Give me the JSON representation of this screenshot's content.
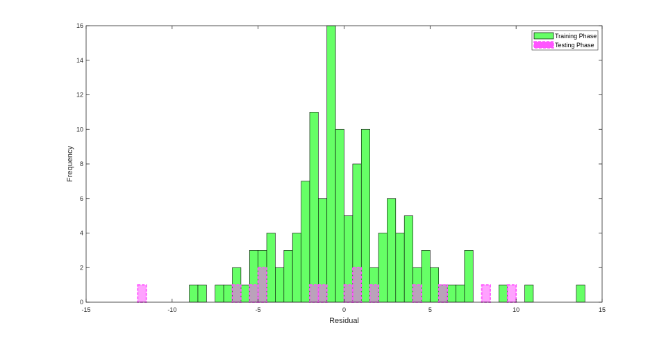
{
  "chart_data": {
    "type": "bar",
    "xlabel": "Residual",
    "ylabel": "Frequency",
    "xlim": [
      -15,
      15
    ],
    "ylim": [
      0,
      16
    ],
    "x_ticks": [
      -15,
      -10,
      -5,
      0,
      5,
      10,
      15
    ],
    "y_ticks": [
      0,
      2,
      4,
      6,
      8,
      10,
      12,
      14,
      16
    ],
    "bin_width": 0.5,
    "legend_position": "top-right",
    "series": [
      {
        "name": "Training Phase",
        "color": "#66ff66",
        "edge_color": "#000000",
        "line_style": "solid",
        "bins": [
          {
            "x": -9,
            "count": 1
          },
          {
            "x": -8.5,
            "count": 1
          },
          {
            "x": -7.5,
            "count": 1
          },
          {
            "x": -7,
            "count": 1
          },
          {
            "x": -6.5,
            "count": 2
          },
          {
            "x": -6,
            "count": 1
          },
          {
            "x": -5.5,
            "count": 3
          },
          {
            "x": -5,
            "count": 3
          },
          {
            "x": -4.5,
            "count": 4
          },
          {
            "x": -4,
            "count": 2
          },
          {
            "x": -3.5,
            "count": 3
          },
          {
            "x": -3,
            "count": 4
          },
          {
            "x": -2.5,
            "count": 7
          },
          {
            "x": -2,
            "count": 11
          },
          {
            "x": -1.5,
            "count": 6
          },
          {
            "x": -1,
            "count": 16
          },
          {
            "x": -0.5,
            "count": 10
          },
          {
            "x": 0,
            "count": 5
          },
          {
            "x": 0.5,
            "count": 8
          },
          {
            "x": 1,
            "count": 10
          },
          {
            "x": 1.5,
            "count": 2
          },
          {
            "x": 2,
            "count": 4
          },
          {
            "x": 2.5,
            "count": 6
          },
          {
            "x": 3,
            "count": 4
          },
          {
            "x": 3.5,
            "count": 5
          },
          {
            "x": 4,
            "count": 2
          },
          {
            "x": 4.5,
            "count": 3
          },
          {
            "x": 5,
            "count": 2
          },
          {
            "x": 5.5,
            "count": 1
          },
          {
            "x": 6,
            "count": 1
          },
          {
            "x": 6.5,
            "count": 1
          },
          {
            "x": 7,
            "count": 3
          },
          {
            "x": 9,
            "count": 1
          },
          {
            "x": 10.5,
            "count": 1
          },
          {
            "x": 13.5,
            "count": 1
          }
        ]
      },
      {
        "name": "Testing Phase",
        "color": "#ff55ff",
        "edge_color": "#ff55ff",
        "line_style": "dashed",
        "bins": [
          {
            "x": -12,
            "count": 1
          },
          {
            "x": -6.5,
            "count": 1
          },
          {
            "x": -5.5,
            "count": 1
          },
          {
            "x": -5,
            "count": 2
          },
          {
            "x": -2,
            "count": 1
          },
          {
            "x": -1.5,
            "count": 1
          },
          {
            "x": 0,
            "count": 1
          },
          {
            "x": 0.5,
            "count": 2
          },
          {
            "x": 1.5,
            "count": 1
          },
          {
            "x": 4,
            "count": 1
          },
          {
            "x": 5.5,
            "count": 1
          },
          {
            "x": 8,
            "count": 1
          },
          {
            "x": 9.5,
            "count": 1
          }
        ]
      }
    ]
  }
}
